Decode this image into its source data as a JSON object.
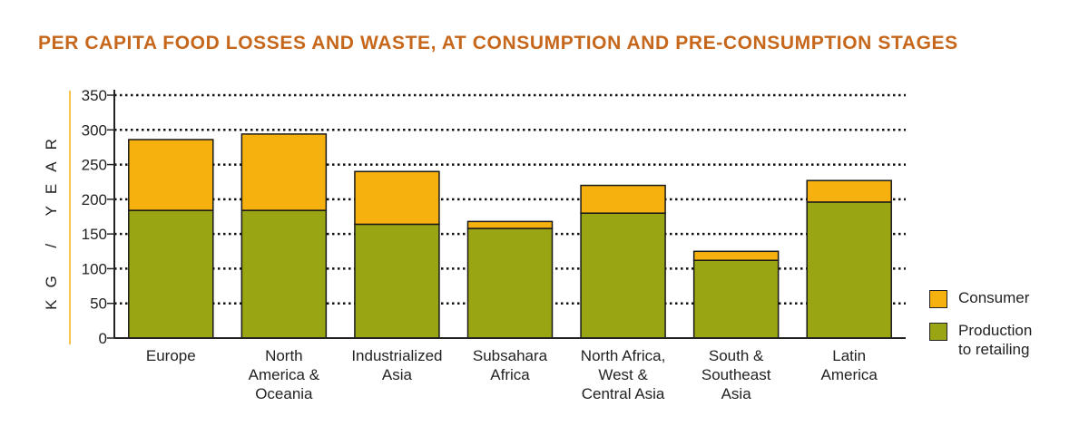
{
  "chart_data": {
    "type": "bar",
    "stacked": true,
    "title": "PER CAPITA FOOD LOSSES AND WASTE, AT CONSUMPTION AND PRE-CONSUMPTION STAGES",
    "ylabel": "KG / YEAR",
    "ylim": [
      0,
      350
    ],
    "yticks": [
      0,
      50,
      100,
      150,
      200,
      250,
      300,
      350
    ],
    "grid": true,
    "legend_position": "right",
    "categories": [
      "Europe",
      "North\nAmerica &\nOceania",
      "Industrialized\nAsia",
      "Subsahara\nAfrica",
      "North Africa,\nWest &\nCentral Asia",
      "South &\nSoutheast\nAsia",
      "Latin\nAmerica"
    ],
    "series": [
      {
        "name": "Production\nto retailing",
        "color": "#9aa514",
        "values": [
          184,
          184,
          164,
          158,
          180,
          112,
          196
        ]
      },
      {
        "name": "Consumer",
        "color": "#f7b10f",
        "values": [
          102,
          110,
          76,
          10,
          40,
          13,
          31
        ]
      }
    ],
    "colors": {
      "title": "#c6671b",
      "axis": "#222222",
      "label_rule": "#f7b10f"
    }
  }
}
